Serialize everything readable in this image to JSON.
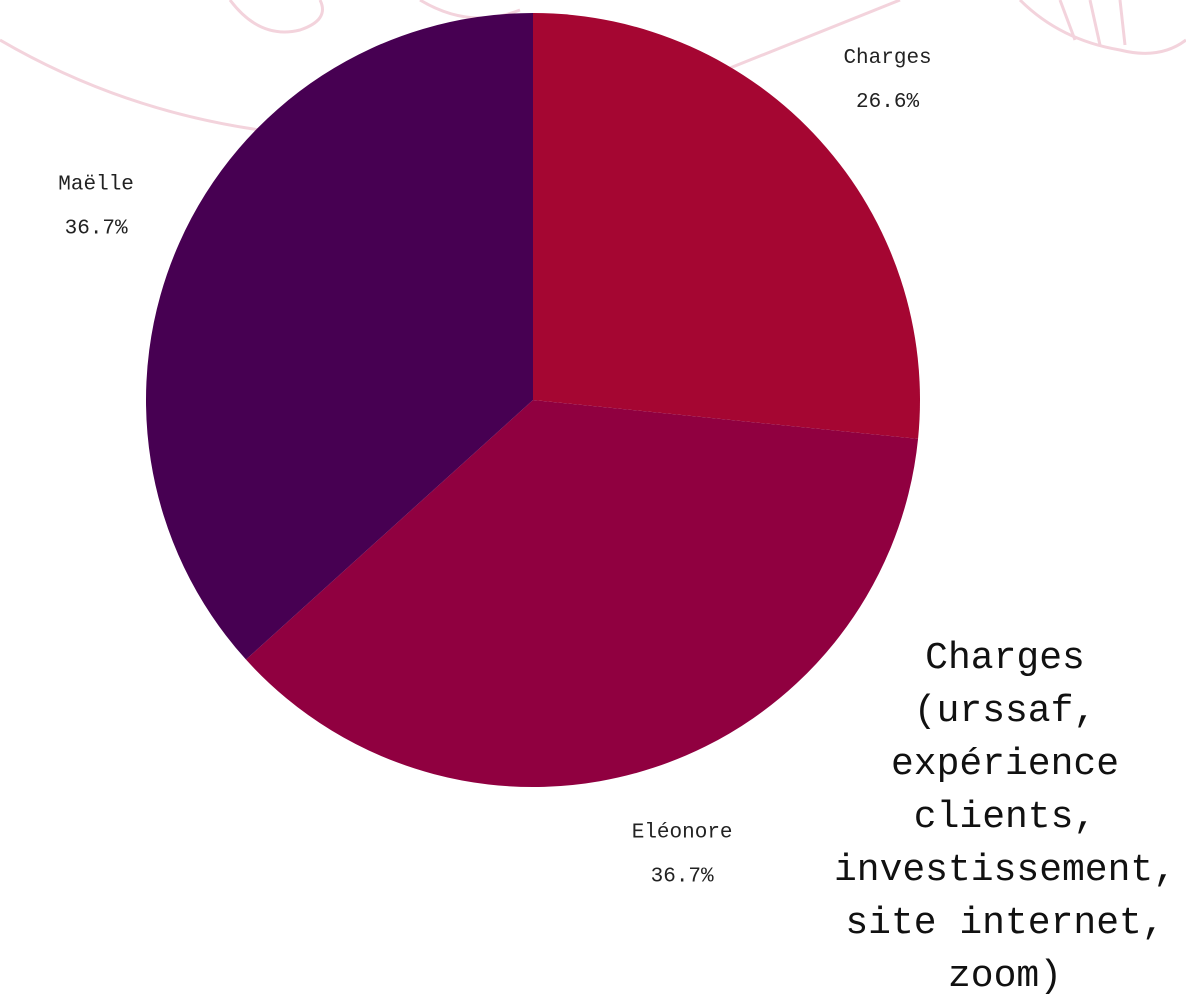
{
  "chart_data": {
    "type": "pie",
    "categories": [
      "Charges",
      "Eléonore",
      "Maëlle"
    ],
    "values": [
      26.6,
      36.7,
      36.7
    ],
    "value_labels": [
      "26.6%",
      "36.7%",
      "36.7%"
    ],
    "colors": [
      "#a50632",
      "#900040",
      "#470052"
    ],
    "annotation": "Charges (urssaf, expérience clients, investissement, site internet, zoom)"
  }
}
